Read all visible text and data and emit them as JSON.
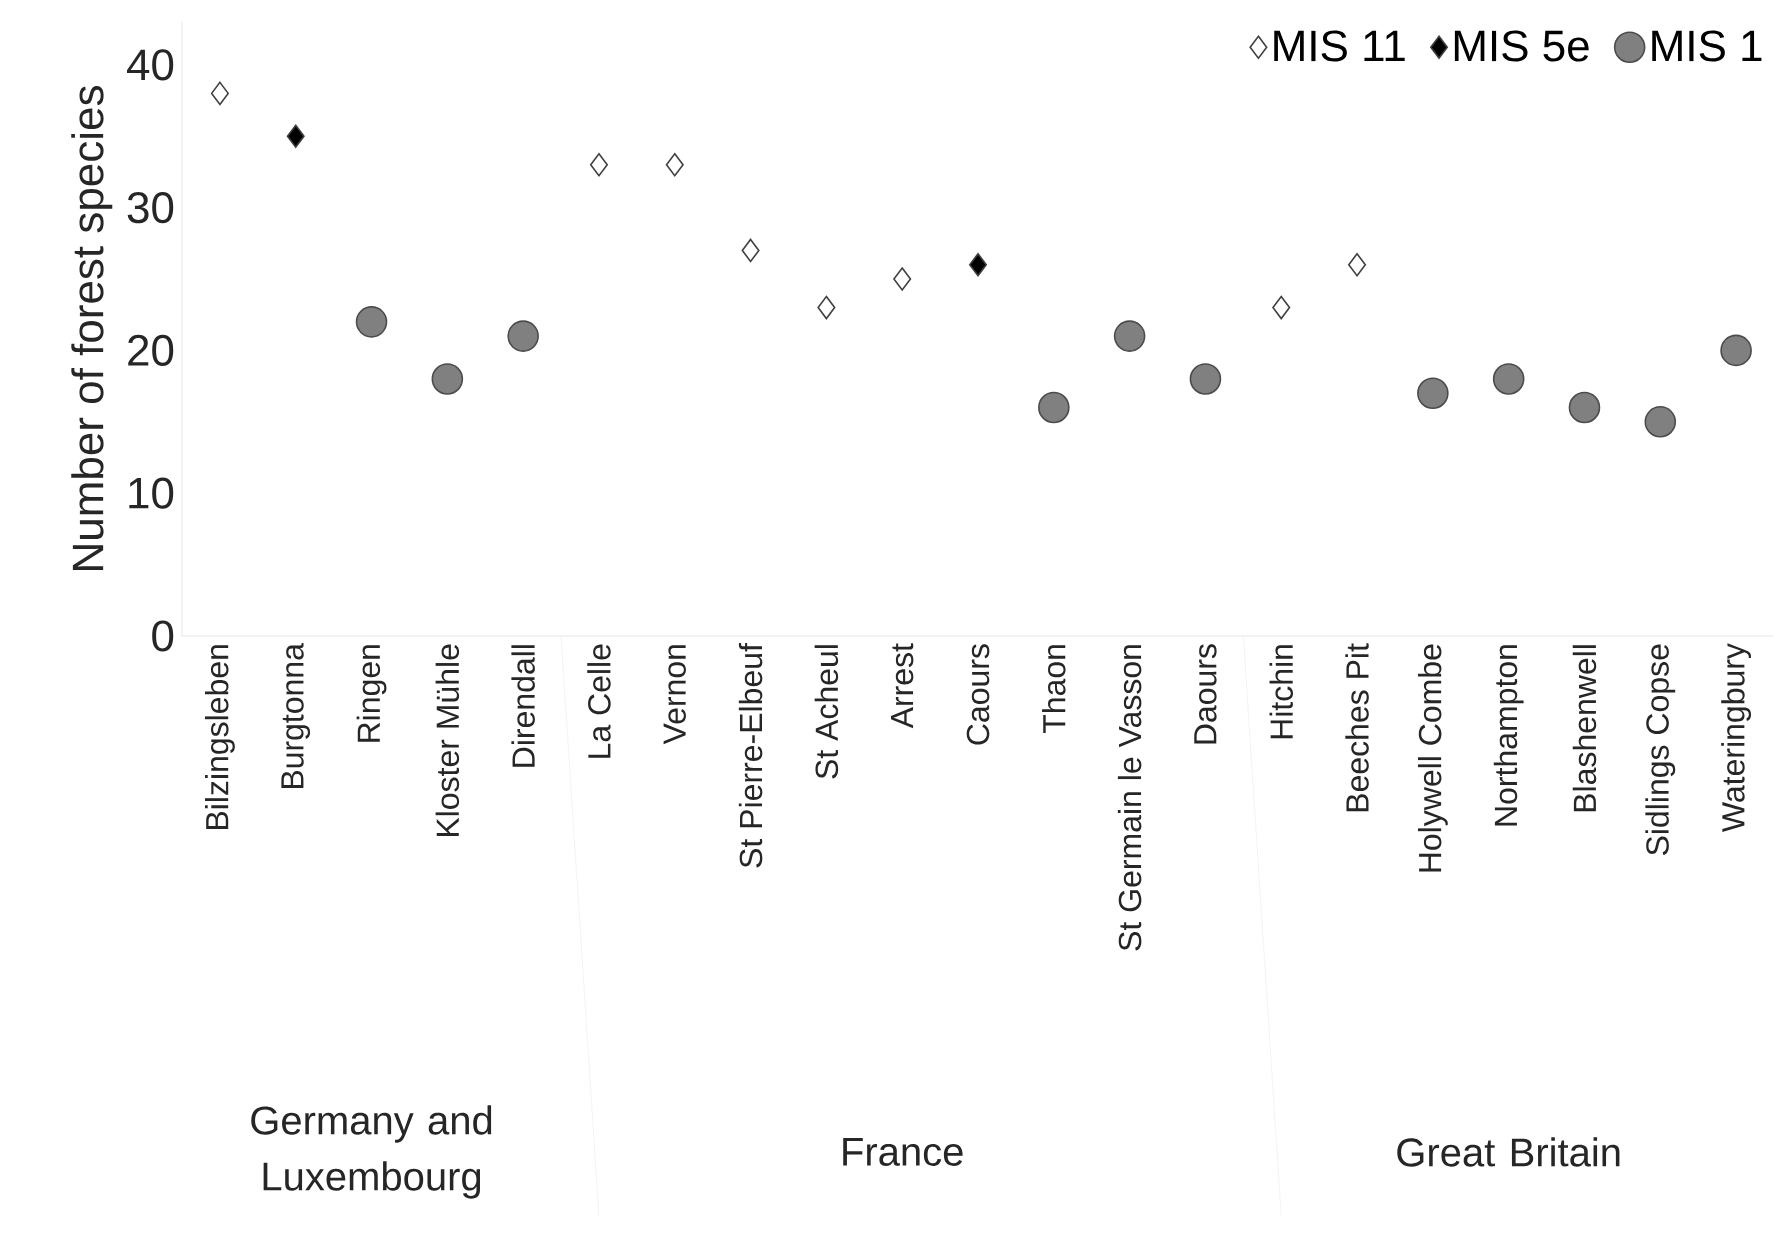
{
  "chart_data": {
    "type": "scatter",
    "ylabel": "Number of forest species",
    "categories": [
      "Bilzingsleben",
      "Burgtonna",
      "Ringen",
      "Kloster Mühle",
      "Direndall",
      "La Celle",
      "Vernon",
      "St Pierre-Elbeuf",
      "St Acheul",
      "Arrest",
      "Caours",
      "Thaon",
      "St Germain le Vasson",
      "Daours",
      "Hitchin",
      "Beeches Pit",
      "Holywell Combe",
      "Northampton",
      "Blashenwell",
      "Sidlings Copse",
      "Wateringbury"
    ],
    "series": [
      {
        "name": "MIS 11",
        "color": "#ffffff",
        "marker": "diamond",
        "values": [
          38,
          null,
          null,
          null,
          null,
          33,
          33,
          27,
          23,
          25,
          null,
          null,
          null,
          null,
          23,
          26,
          null,
          null,
          null,
          null,
          null
        ]
      },
      {
        "name": "MIS 5e",
        "color": "#000000",
        "marker": "diamond",
        "values": [
          null,
          35,
          null,
          null,
          null,
          null,
          null,
          null,
          null,
          null,
          26,
          null,
          null,
          null,
          null,
          null,
          null,
          null,
          null,
          null,
          null
        ]
      },
      {
        "name": "MIS 1",
        "color": "#808080",
        "marker": "circle",
        "values": [
          null,
          null,
          22,
          18,
          21,
          null,
          null,
          null,
          null,
          null,
          null,
          16,
          21,
          18,
          null,
          null,
          17,
          18,
          16,
          15,
          20
        ]
      }
    ],
    "ylim": [
      0,
      43
    ],
    "yticks": [
      0,
      10,
      20,
      30,
      40
    ],
    "legend": "top right",
    "grid": false,
    "annotations": [
      "Germany and Luxembourg",
      "France",
      "Great Britain"
    ]
  }
}
